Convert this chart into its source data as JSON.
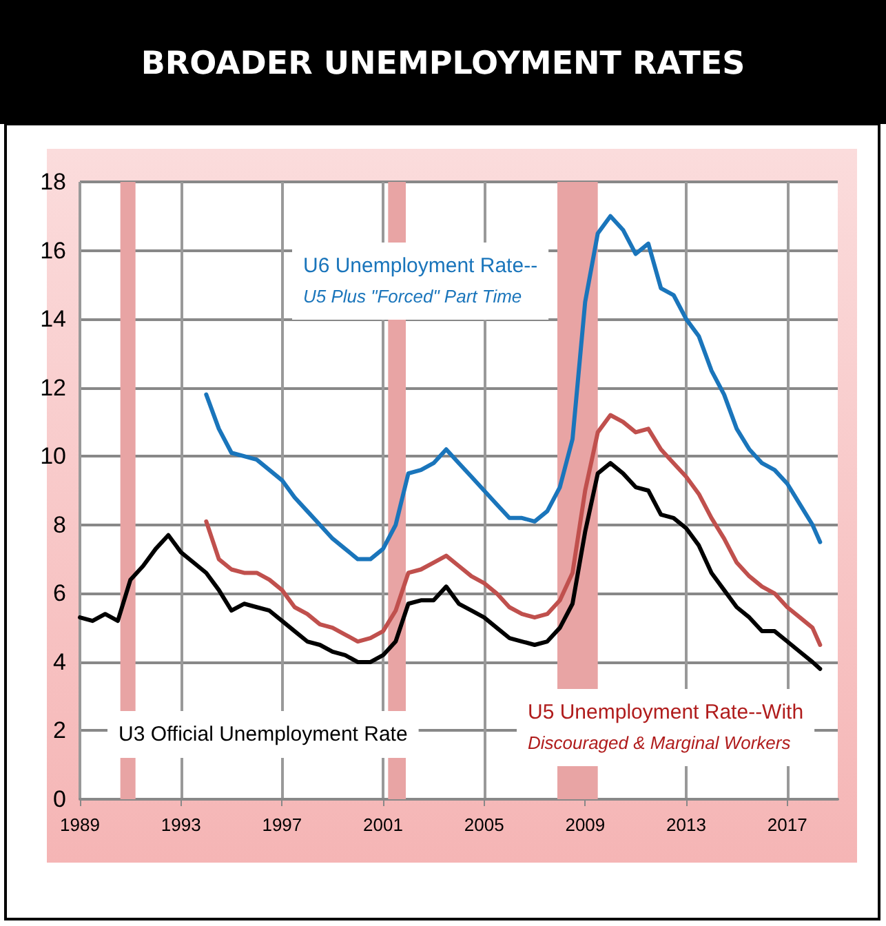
{
  "chart_data": {
    "type": "line",
    "title": "BROADER UNEMPLOYMENT RATES",
    "xlim": [
      1989,
      2019
    ],
    "xticks": [
      1989,
      1993,
      1997,
      2001,
      2005,
      2009,
      2013,
      2017
    ],
    "ylim": [
      0,
      18
    ],
    "yticks": [
      0,
      2,
      4,
      6,
      8,
      10,
      12,
      14,
      16,
      18
    ],
    "grid": true,
    "marker": "none",
    "line_style": "solid",
    "series": [
      {
        "color": "#000000",
        "x": [
          1989,
          1989.5,
          1990,
          1990.5,
          1991,
          1991.5,
          1992,
          1992.5,
          1993,
          1993.5,
          1994,
          1994.5,
          1995,
          1995.5,
          1996,
          1996.5,
          1997,
          1997.5,
          1998,
          1998.5,
          1999,
          1999.5,
          2000,
          2000.5,
          2001,
          2001.5,
          2002,
          2002.5,
          2003,
          2003.5,
          2004,
          2004.5,
          2005,
          2005.5,
          2006,
          2006.5,
          2007,
          2007.5,
          2008,
          2008.5,
          2009,
          2009.5,
          2010,
          2010.5,
          2011,
          2011.5,
          2012,
          2012.5,
          2013,
          2013.5,
          2014,
          2014.5,
          2015,
          2015.5,
          2016,
          2016.5,
          2017,
          2017.5,
          2018,
          2018.3
        ],
        "values": [
          5.3,
          5.2,
          5.4,
          5.2,
          6.4,
          6.8,
          7.3,
          7.7,
          7.2,
          6.9,
          6.6,
          6.1,
          5.5,
          5.7,
          5.6,
          5.5,
          5.2,
          4.9,
          4.6,
          4.5,
          4.3,
          4.2,
          4.0,
          4.0,
          4.2,
          4.6,
          5.7,
          5.8,
          5.8,
          6.2,
          5.7,
          5.5,
          5.3,
          5.0,
          4.7,
          4.6,
          4.5,
          4.6,
          5.0,
          5.7,
          7.8,
          9.5,
          9.8,
          9.5,
          9.1,
          9.0,
          8.3,
          8.2,
          7.9,
          7.4,
          6.6,
          6.1,
          5.6,
          5.3,
          4.9,
          4.9,
          4.6,
          4.3,
          4.0,
          3.8
        ]
      },
      {
        "color": "#c0504d",
        "x": [
          1994,
          1994.5,
          1995,
          1995.5,
          1996,
          1996.5,
          1997,
          1997.5,
          1998,
          1998.5,
          1999,
          1999.5,
          2000,
          2000.5,
          2001,
          2001.5,
          2002,
          2002.5,
          2003,
          2003.5,
          2004,
          2004.5,
          2005,
          2005.5,
          2006,
          2006.5,
          2007,
          2007.5,
          2008,
          2008.5,
          2009,
          2009.5,
          2010,
          2010.5,
          2011,
          2011.5,
          2012,
          2012.5,
          2013,
          2013.5,
          2014,
          2014.5,
          2015,
          2015.5,
          2016,
          2016.5,
          2017,
          2017.5,
          2018,
          2018.3
        ],
        "values": [
          8.1,
          7.0,
          6.7,
          6.6,
          6.6,
          6.4,
          6.1,
          5.6,
          5.4,
          5.1,
          5.0,
          4.8,
          4.6,
          4.7,
          4.9,
          5.5,
          6.6,
          6.7,
          6.9,
          7.1,
          6.8,
          6.5,
          6.3,
          6.0,
          5.6,
          5.4,
          5.3,
          5.4,
          5.8,
          6.6,
          9.0,
          10.7,
          11.2,
          11.0,
          10.7,
          10.8,
          10.2,
          9.8,
          9.4,
          8.9,
          8.2,
          7.6,
          6.9,
          6.5,
          6.2,
          6.0,
          5.6,
          5.3,
          5.0,
          4.5
        ]
      },
      {
        "color": "#1a75bb",
        "x": [
          1994,
          1994.5,
          1995,
          1995.5,
          1996,
          1996.5,
          1997,
          1997.5,
          1998,
          1998.5,
          1999,
          1999.5,
          2000,
          2000.5,
          2001,
          2001.5,
          2002,
          2002.5,
          2003,
          2003.5,
          2004,
          2004.5,
          2005,
          2005.5,
          2006,
          2006.5,
          2007,
          2007.5,
          2008,
          2008.5,
          2009,
          2009.5,
          2010,
          2010.5,
          2011,
          2011.5,
          2012,
          2012.5,
          2013,
          2013.5,
          2014,
          2014.5,
          2015,
          2015.5,
          2016,
          2016.5,
          2017,
          2017.5,
          2018,
          2018.3
        ],
        "values": [
          11.8,
          10.8,
          10.1,
          10.0,
          9.9,
          9.6,
          9.3,
          8.8,
          8.4,
          8.0,
          7.6,
          7.3,
          7.0,
          7.0,
          7.3,
          8.0,
          9.5,
          9.6,
          9.8,
          10.2,
          9.8,
          9.4,
          9.0,
          8.6,
          8.2,
          8.2,
          8.1,
          8.4,
          9.1,
          10.5,
          14.5,
          16.5,
          17.0,
          16.6,
          15.9,
          16.2,
          14.9,
          14.7,
          14.0,
          13.5,
          12.5,
          11.8,
          10.8,
          10.2,
          9.8,
          9.6,
          9.2,
          8.6,
          8.0,
          7.5
        ]
      }
    ],
    "bands": [
      {
        "axis": "x",
        "from": 1990.6,
        "to": 1991.2,
        "color": "#e8a4a4"
      },
      {
        "axis": "x",
        "from": 2001.2,
        "to": 2001.9,
        "color": "#e8a4a4"
      },
      {
        "axis": "x",
        "from": 2007.9,
        "to": 2009.5,
        "color": "#e8a4a4"
      }
    ],
    "annotations": [
      "U3 Official Unemployment Rate",
      "U5 Unemployment Rate--With\nDiscouraged & Marginal Workers",
      "U6 Unemployment Rate--\nU5 Plus \"Forced\" Part Time"
    ]
  }
}
